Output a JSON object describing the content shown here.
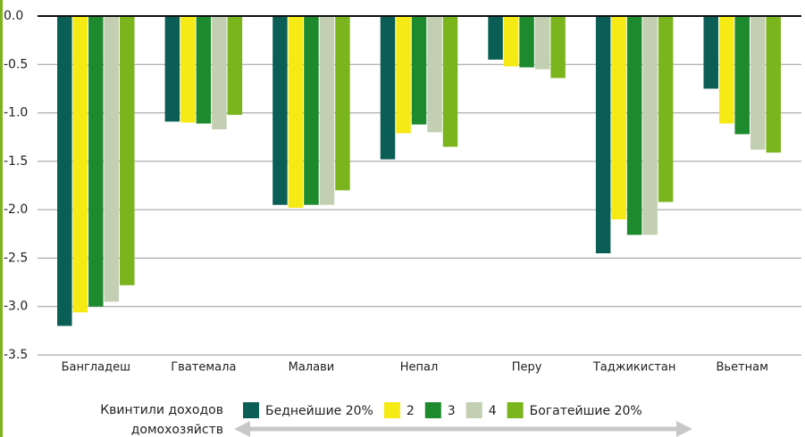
{
  "chart_data": {
    "type": "bar",
    "categories": [
      "Бангладеш",
      "Гватемала",
      "Малави",
      "Непал",
      "Перу",
      "Таджикистан",
      "Вьетнам"
    ],
    "series": [
      {
        "name": "Беднейшие 20%",
        "color": "#0b5e55",
        "values": [
          -3.2,
          -1.09,
          -1.95,
          -1.48,
          -0.45,
          -2.45,
          -0.75
        ]
      },
      {
        "name": "2",
        "color": "#f5ea14",
        "values": [
          -3.06,
          -1.1,
          -1.98,
          -1.21,
          -0.52,
          -2.1,
          -1.11
        ]
      },
      {
        "name": "3",
        "color": "#1e8a2e",
        "values": [
          -3.0,
          -1.11,
          -1.95,
          -1.12,
          -0.53,
          -2.26,
          -1.22
        ]
      },
      {
        "name": "4",
        "color": "#c3cfb2",
        "values": [
          -2.95,
          -1.17,
          -1.95,
          -1.2,
          -0.55,
          -2.26,
          -1.38
        ]
      },
      {
        "name": "Богатейшие 20%",
        "color": "#7ab51d",
        "values": [
          -2.78,
          -1.02,
          -1.8,
          -1.35,
          -0.64,
          -1.92,
          -1.41
        ]
      }
    ],
    "legend_title": [
      "Квинтили доходов",
      "домохозяйств"
    ],
    "ylim": [
      -3.5,
      0
    ],
    "yticks": [
      {
        "value": 0,
        "label": "0.0"
      },
      -0.5,
      {
        "value": -1,
        "label": "-1.0"
      },
      -1.5,
      {
        "value": -2,
        "label": "-2.0"
      },
      -2.5,
      {
        "value": -3,
        "label": "-3.0"
      },
      -3.5
    ],
    "grid": true
  }
}
